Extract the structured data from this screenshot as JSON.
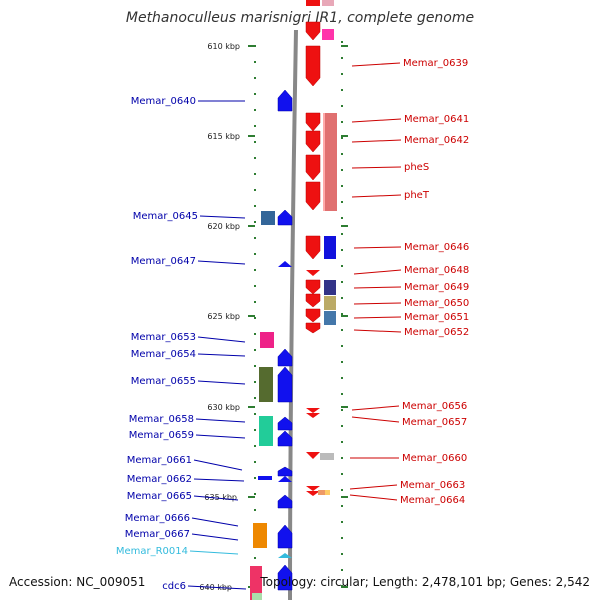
{
  "title": "Methanoculleus marisnigri JR1, complete genome",
  "accession": "Accession: NC_009051",
  "info": "Topology: circular; Length: 2,478,101 bp; Genes: 2,542",
  "colors": {
    "backbone": "#888888",
    "tick": "#2e7d32",
    "forward_gene": "#ee1111",
    "reverse_gene": "#1111ee",
    "forward_label": "#cc0000",
    "reverse_label": "#0000aa",
    "rna_label": "#33bbdd"
  },
  "scale": [
    {
      "label": "610 kbp"
    },
    {
      "label": "615 kbp"
    },
    {
      "label": "620 kbp"
    },
    {
      "label": "625 kbp"
    },
    {
      "label": "630 kbp"
    },
    {
      "label": "635 kbp"
    },
    {
      "label": "640 kbp"
    }
  ],
  "forward_labels": [
    {
      "text": "Memar_0639"
    },
    {
      "text": "Memar_0641"
    },
    {
      "text": "Memar_0642"
    },
    {
      "text": "pheS"
    },
    {
      "text": "pheT"
    },
    {
      "text": "Memar_0646"
    },
    {
      "text": "Memar_0648"
    },
    {
      "text": "Memar_0649"
    },
    {
      "text": "Memar_0650"
    },
    {
      "text": "Memar_0651"
    },
    {
      "text": "Memar_0652"
    },
    {
      "text": "Memar_0656"
    },
    {
      "text": "Memar_0657"
    },
    {
      "text": "Memar_0660"
    },
    {
      "text": "Memar_0663"
    },
    {
      "text": "Memar_0664"
    }
  ],
  "reverse_labels": [
    {
      "text": "Memar_0640"
    },
    {
      "text": "Memar_0645"
    },
    {
      "text": "Memar_0647"
    },
    {
      "text": "Memar_0653"
    },
    {
      "text": "Memar_0654"
    },
    {
      "text": "Memar_0655"
    },
    {
      "text": "Memar_0658"
    },
    {
      "text": "Memar_0659"
    },
    {
      "text": "Memar_0661"
    },
    {
      "text": "Memar_0662"
    },
    {
      "text": "Memar_0665"
    },
    {
      "text": "Memar_0666"
    },
    {
      "text": "Memar_0667"
    },
    {
      "text": "Memar_R0014"
    },
    {
      "text": "cdc6"
    }
  ]
}
